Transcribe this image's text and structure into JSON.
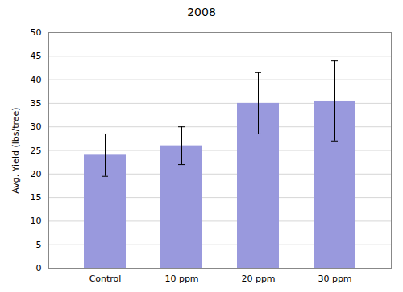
{
  "chart_data": {
    "type": "bar",
    "title": "2008",
    "categories": [
      "Control",
      "10 ppm",
      "20 ppm",
      "30 ppm"
    ],
    "values": [
      24.0,
      26.0,
      35.0,
      35.5
    ],
    "errors_upper": [
      4.5,
      4.0,
      6.5,
      8.5
    ],
    "errors_lower": [
      4.5,
      4.0,
      6.5,
      8.5
    ],
    "color": "#9999DD",
    "ylabel": "Avg. Yield (lbs/tree)",
    "ylim": [
      0,
      50
    ],
    "yticks": [
      0,
      5,
      10,
      15,
      20,
      25,
      30,
      35,
      40,
      45,
      50
    ],
    "grid": true
  }
}
